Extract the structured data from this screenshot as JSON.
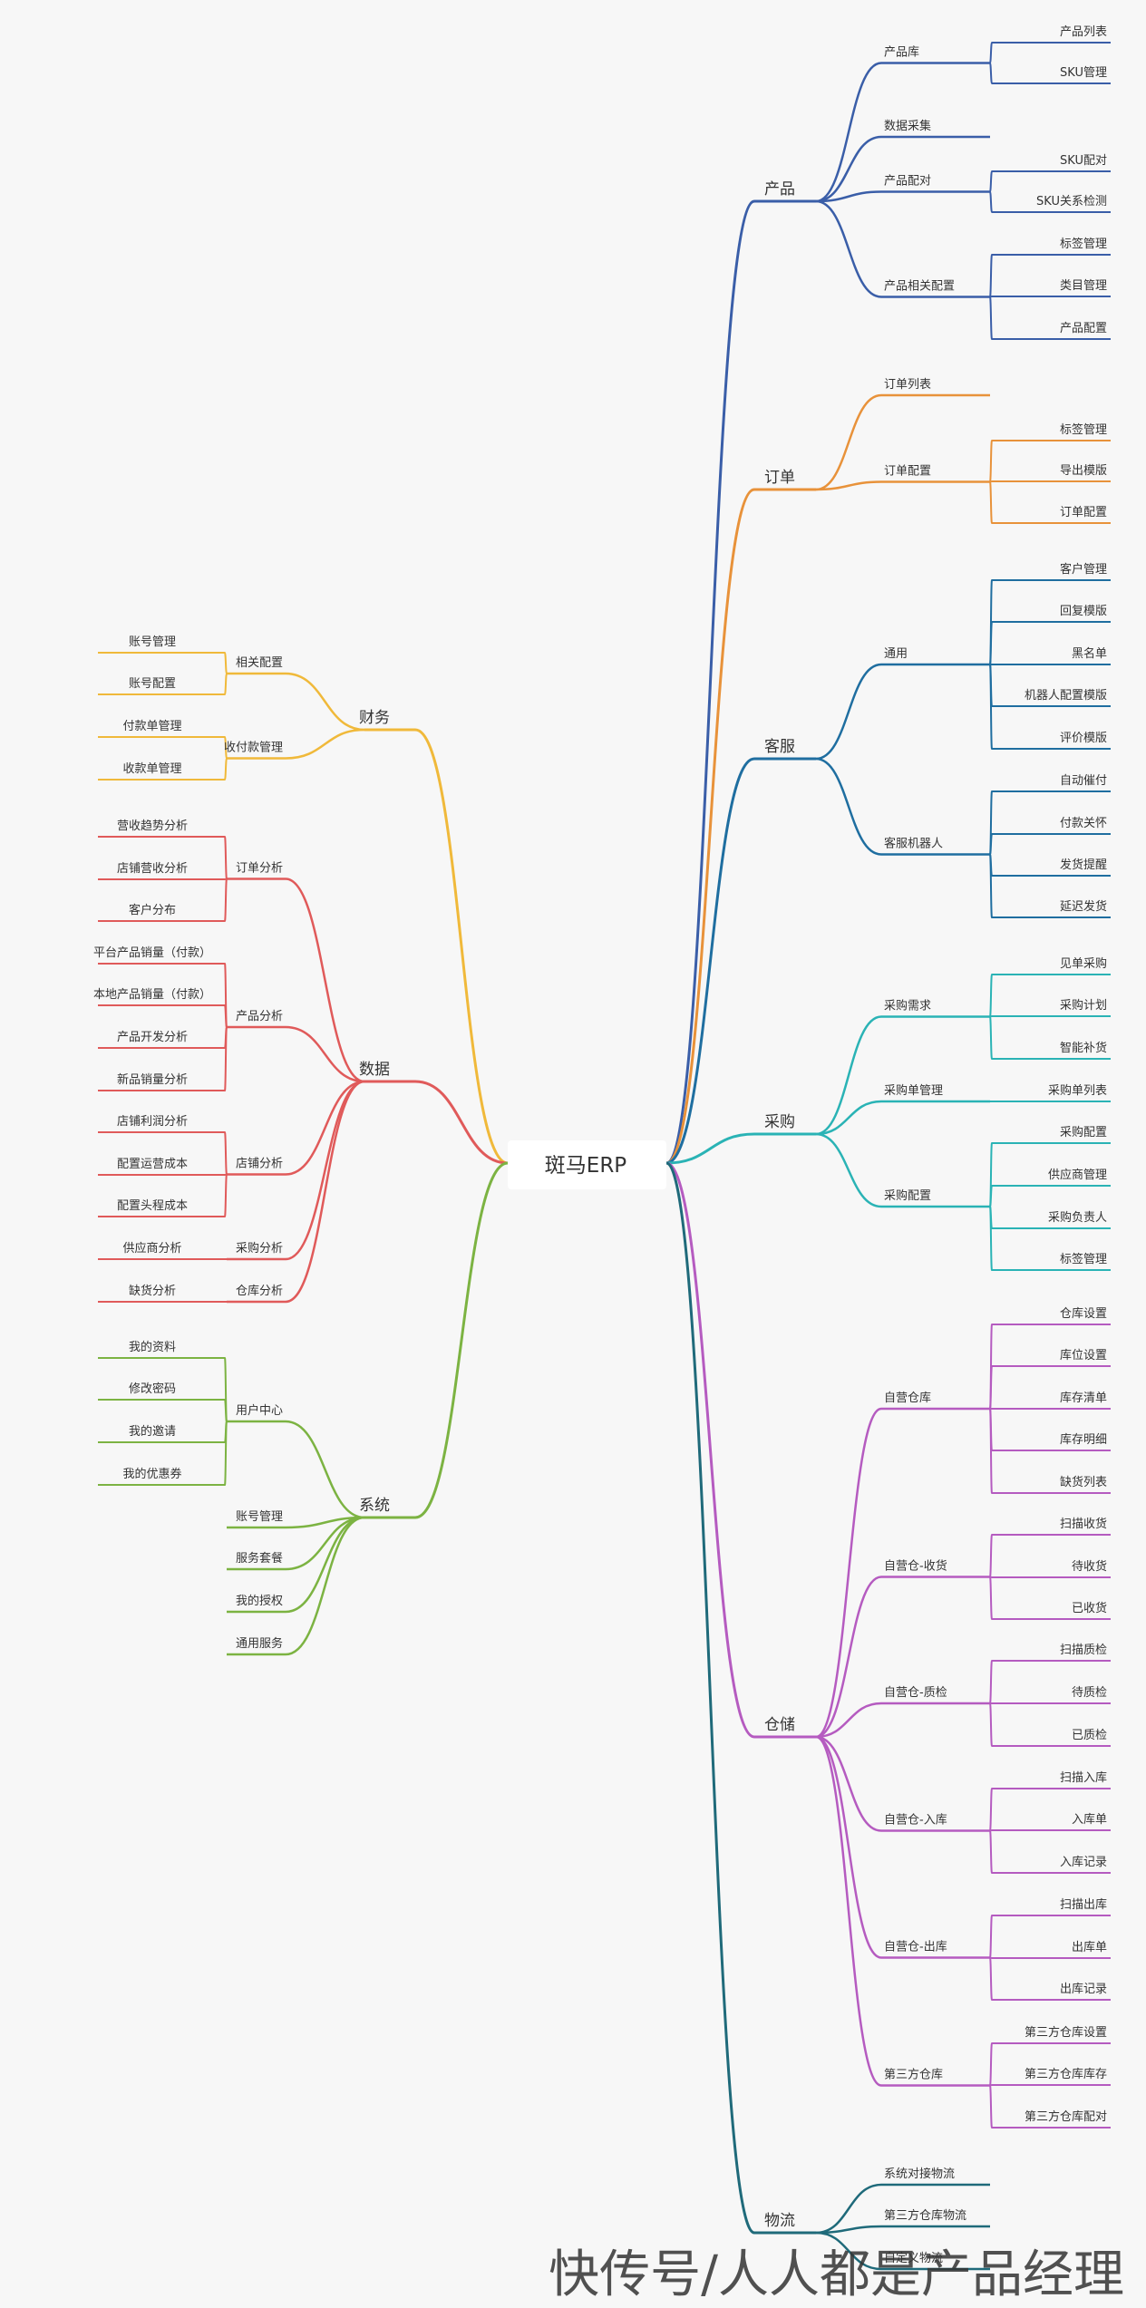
{
  "root": "斑马ERP",
  "watermark": "快传号/人人都是产品经理",
  "colors": {
    "产品": "#3a5ea8",
    "订单": "#e8923a",
    "客服": "#1f6ea0",
    "采购": "#2ab3b5",
    "仓储": "#b55bc0",
    "物流": "#1f6a7a",
    "财务": "#f0b93a",
    "数据": "#e05a5a",
    "系统": "#7cb342"
  },
  "right": [
    {
      "label": "产品",
      "children": [
        {
          "label": "产品库",
          "children": [
            "产品列表",
            "SKU管理"
          ]
        },
        {
          "label": "数据采集",
          "children": []
        },
        {
          "label": "产品配对",
          "children": [
            "SKU配对",
            "SKU关系检测"
          ]
        },
        {
          "label": "产品相关配置",
          "children": [
            "标签管理",
            "类目管理",
            "产品配置"
          ]
        }
      ]
    },
    {
      "label": "订单",
      "children": [
        {
          "label": "订单列表",
          "children": []
        },
        {
          "label": "订单配置",
          "children": [
            "标签管理",
            "导出模版",
            "订单配置"
          ]
        }
      ]
    },
    {
      "label": "客服",
      "children": [
        {
          "label": "通用",
          "children": [
            "客户管理",
            "回复模版",
            "黑名单",
            "机器人配置模版",
            "评价模版"
          ]
        },
        {
          "label": "客服机器人",
          "children": [
            "自动催付",
            "付款关怀",
            "发货提醒",
            "延迟发货"
          ]
        }
      ]
    },
    {
      "label": "采购",
      "children": [
        {
          "label": "采购需求",
          "children": [
            "见单采购",
            "采购计划",
            "智能补货"
          ]
        },
        {
          "label": "采购单管理",
          "children": [
            "采购单列表"
          ]
        },
        {
          "label": "采购配置",
          "children": [
            "采购配置",
            "供应商管理",
            "采购负责人",
            "标签管理"
          ]
        }
      ]
    },
    {
      "label": "仓储",
      "children": [
        {
          "label": "自营仓库",
          "children": [
            "仓库设置",
            "库位设置",
            "库存清单",
            "库存明细",
            "缺货列表"
          ]
        },
        {
          "label": "自营仓-收货",
          "children": [
            "扫描收货",
            "待收货",
            "已收货"
          ]
        },
        {
          "label": "自营仓-质检",
          "children": [
            "扫描质检",
            "待质检",
            "已质检"
          ]
        },
        {
          "label": "自营仓-入库",
          "children": [
            "扫描入库",
            "入库单",
            "入库记录"
          ]
        },
        {
          "label": "自营仓-出库",
          "children": [
            "扫描出库",
            "出库单",
            "出库记录"
          ]
        },
        {
          "label": "第三方仓库",
          "children": [
            "第三方仓库设置",
            "第三方仓库库存",
            "第三方仓库配对"
          ]
        }
      ]
    },
    {
      "label": "物流",
      "children": [
        {
          "label": "系统对接物流",
          "children": []
        },
        {
          "label": "第三方仓库物流",
          "children": []
        },
        {
          "label": "自定义物流",
          "children": []
        }
      ]
    }
  ],
  "left": [
    {
      "label": "财务",
      "children": [
        {
          "label": "相关配置",
          "children": [
            "账号管理",
            "账号配置"
          ]
        },
        {
          "label": "收付款管理",
          "children": [
            "付款单管理",
            "收款单管理"
          ]
        }
      ]
    },
    {
      "label": "数据",
      "children": [
        {
          "label": "订单分析",
          "children": [
            "营收趋势分析",
            "店铺营收分析",
            "客户分布"
          ]
        },
        {
          "label": "产品分析",
          "children": [
            "平台产品销量（付款）",
            "本地产品销量（付款）",
            "产品开发分析",
            "新品销量分析"
          ]
        },
        {
          "label": "店铺分析",
          "children": [
            "店铺利润分析",
            "配置运营成本",
            "配置头程成本"
          ]
        },
        {
          "label": "采购分析",
          "children": [
            "供应商分析"
          ]
        },
        {
          "label": "仓库分析",
          "children": [
            "缺货分析"
          ]
        }
      ]
    },
    {
      "label": "系统",
      "children": [
        {
          "label": "用户中心",
          "children": [
            "我的资料",
            "修改密码",
            "我的邀请",
            "我的优惠券"
          ]
        },
        {
          "label": "账号管理",
          "children": []
        },
        {
          "label": "服务套餐",
          "children": []
        },
        {
          "label": "我的授权",
          "children": []
        },
        {
          "label": "通用服务",
          "children": []
        }
      ]
    }
  ]
}
